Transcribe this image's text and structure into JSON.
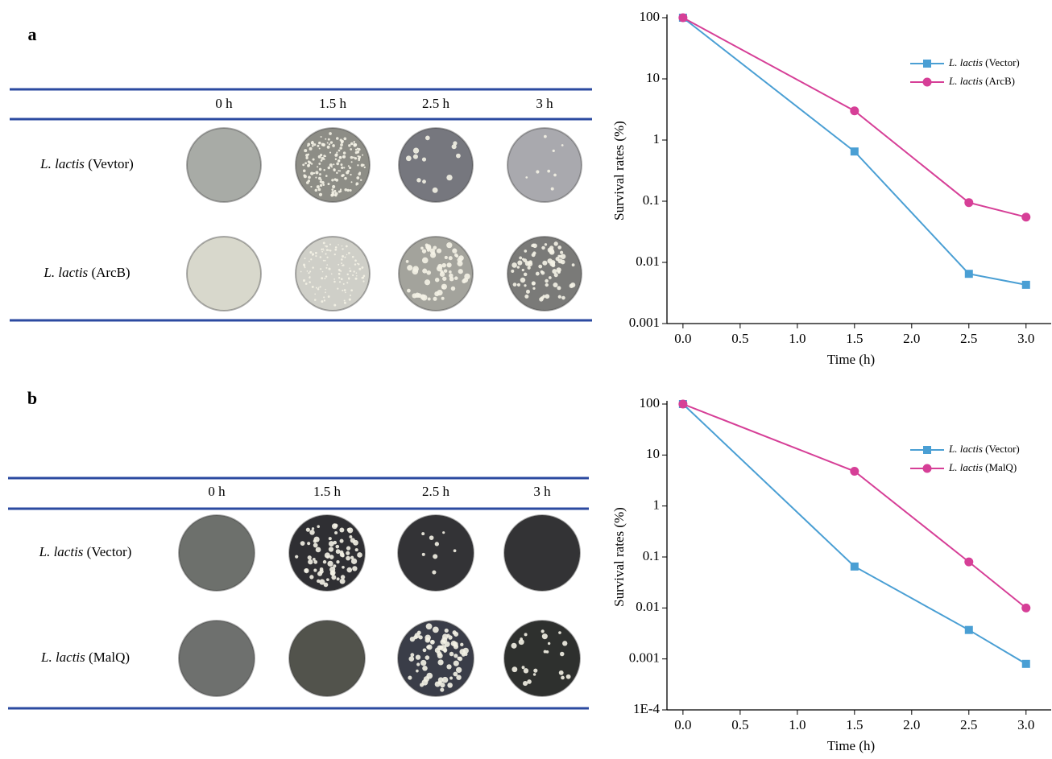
{
  "panels": [
    {
      "label": "a",
      "table": {
        "columns": [
          "0 h",
          "1.5 h",
          "2.5 h",
          "3 h"
        ],
        "rows": [
          "L. lactis (Vevtor)",
          "L. lactis (ArcB)"
        ]
      }
    },
    {
      "label": "b",
      "table": {
        "columns": [
          "0 h",
          "1.5 h",
          "2.5 h",
          "3 h"
        ],
        "rows": [
          "L. lactis (Vector)",
          "L. lactis (MalQ)"
        ]
      }
    }
  ],
  "chart_data": [
    {
      "type": "line",
      "xlabel": "Time (h)",
      "ylabel": "Survival rates (%)",
      "log_y": true,
      "legend": "upper right",
      "x": [
        0,
        1.5,
        2.5,
        3
      ],
      "series": [
        {
          "name": "L. lactis (Vector)",
          "color": "#4a9fd4",
          "marker": "square",
          "values": [
            100,
            0.65,
            0.0065,
            0.0043
          ]
        },
        {
          "name": "L. lactis (ArcB)",
          "color": "#d63f97",
          "marker": "circle",
          "values": [
            100,
            3.0,
            0.095,
            0.055
          ]
        }
      ],
      "xlim": [
        -0.14,
        3.22
      ],
      "xticks": [
        {
          "value": 0,
          "label": "0.0"
        },
        0.5,
        {
          "value": 1,
          "label": "1.0"
        },
        1.5,
        {
          "value": 2,
          "label": "2.0"
        },
        2.5,
        {
          "value": 3,
          "label": "3.0"
        }
      ],
      "ylim": [
        0.001,
        100
      ],
      "yticks": [
        0.001,
        0.01,
        0.1,
        1,
        10,
        100
      ]
    },
    {
      "type": "line",
      "xlabel": "Time (h)",
      "ylabel": "Survival rates (%)",
      "log_y": true,
      "legend": "upper right",
      "x": [
        0,
        1.5,
        2.5,
        3
      ],
      "series": [
        {
          "name": "L. lactis (Vector)",
          "color": "#4a9fd4",
          "marker": "square",
          "values": [
            100,
            0.065,
            0.0037,
            0.0008
          ]
        },
        {
          "name": "L. lactis (MalQ)",
          "color": "#d63f97",
          "marker": "circle",
          "values": [
            100,
            4.8,
            0.08,
            0.01
          ]
        }
      ],
      "xlim": [
        -0.14,
        3.22
      ],
      "xticks": [
        {
          "value": 0,
          "label": "0.0"
        },
        0.5,
        {
          "value": 1,
          "label": "1.0"
        },
        1.5,
        {
          "value": 2,
          "label": "2.0"
        },
        2.5,
        {
          "value": 3,
          "label": "3.0"
        }
      ],
      "ylim": [
        0.0001,
        100
      ],
      "yticks": [
        {
          "value": 0.0001,
          "label": "1E-4"
        },
        0.001,
        0.01,
        0.1,
        1,
        10,
        100
      ]
    }
  ]
}
